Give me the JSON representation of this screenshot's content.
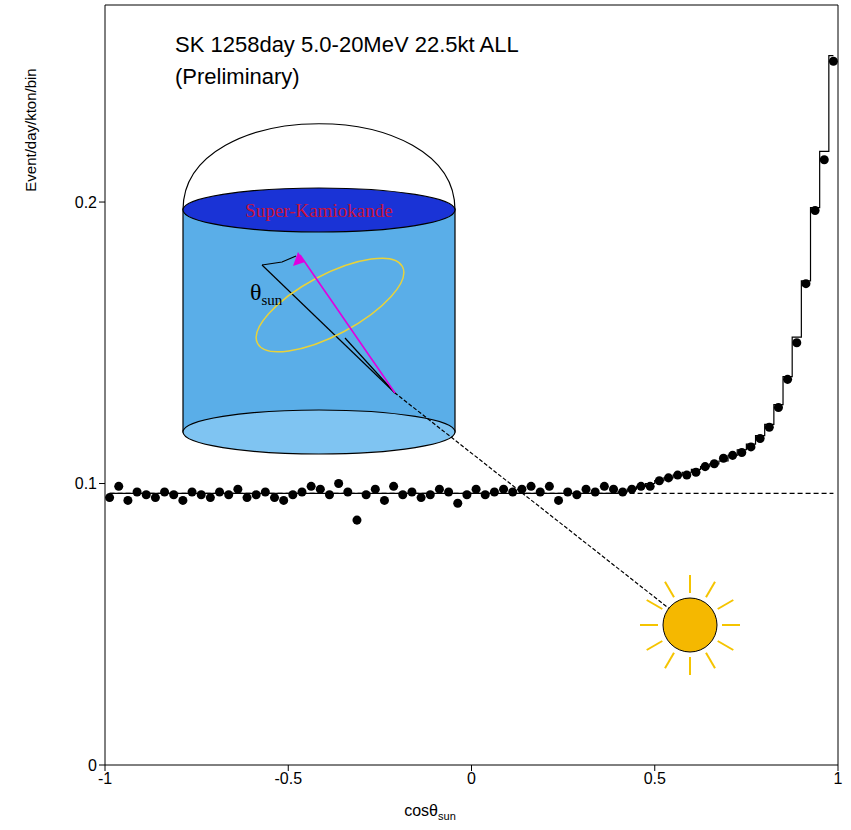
{
  "chart_data": {
    "type": "scatter",
    "title": "SK 1258day  5.0-20MeV  22.5kt  ALL",
    "subtitle": "(Preliminary)",
    "xlabel": {
      "text": "cosθ",
      "subscript": "sun"
    },
    "ylabel": "Event/day/kton/bin",
    "annotations": [
      {
        "text": "Super-Kamiokande"
      },
      {
        "text": "θ",
        "subscript": "sun"
      }
    ],
    "x": [
      -0.9875,
      -0.9625,
      -0.9375,
      -0.9125,
      -0.8875,
      -0.8625,
      -0.8375,
      -0.8125,
      -0.7875,
      -0.7625,
      -0.7375,
      -0.7125,
      -0.6875,
      -0.6625,
      -0.6375,
      -0.6125,
      -0.5875,
      -0.5625,
      -0.5375,
      -0.5125,
      -0.4875,
      -0.4625,
      -0.4375,
      -0.4125,
      -0.3875,
      -0.3625,
      -0.3375,
      -0.3125,
      -0.2875,
      -0.2625,
      -0.2375,
      -0.2125,
      -0.1875,
      -0.1625,
      -0.1375,
      -0.1125,
      -0.0875,
      -0.0625,
      -0.0375,
      -0.0125,
      0.0125,
      0.0375,
      0.0625,
      0.0875,
      0.1125,
      0.1375,
      0.1625,
      0.1875,
      0.2125,
      0.2375,
      0.2625,
      0.2875,
      0.3125,
      0.3375,
      0.3625,
      0.3875,
      0.4125,
      0.4375,
      0.4625,
      0.4875,
      0.5125,
      0.5375,
      0.5625,
      0.5875,
      0.6125,
      0.6375,
      0.6625,
      0.6875,
      0.7125,
      0.7375,
      0.7625,
      0.7875,
      0.8125,
      0.8375,
      0.8625,
      0.8875,
      0.9125,
      0.9375,
      0.9625,
      0.9875
    ],
    "series": [
      {
        "type": "scatter",
        "marker": "circle",
        "color": "#000000",
        "values": [
          0.095,
          0.099,
          0.094,
          0.097,
          0.096,
          0.095,
          0.097,
          0.096,
          0.094,
          0.097,
          0.096,
          0.095,
          0.097,
          0.096,
          0.098,
          0.095,
          0.096,
          0.097,
          0.095,
          0.094,
          0.096,
          0.097,
          0.099,
          0.098,
          0.096,
          0.1,
          0.097,
          0.087,
          0.096,
          0.098,
          0.094,
          0.099,
          0.096,
          0.097,
          0.095,
          0.096,
          0.098,
          0.097,
          0.093,
          0.096,
          0.098,
          0.096,
          0.097,
          0.098,
          0.097,
          0.098,
          0.099,
          0.097,
          0.099,
          0.094,
          0.097,
          0.096,
          0.098,
          0.097,
          0.099,
          0.098,
          0.097,
          0.098,
          0.099,
          0.099,
          0.101,
          0.102,
          0.103,
          0.103,
          0.104,
          0.106,
          0.107,
          0.109,
          0.11,
          0.111,
          0.113,
          0.116,
          0.12,
          0.127,
          0.137,
          0.15,
          0.171,
          0.197,
          0.215,
          0.25
        ]
      },
      {
        "type": "line",
        "line_style": "step",
        "color": "#000000",
        "values": [
          0.0965,
          0.0965,
          0.0965,
          0.0965,
          0.0965,
          0.0965,
          0.0965,
          0.0965,
          0.0965,
          0.0965,
          0.0965,
          0.0965,
          0.0965,
          0.0965,
          0.0965,
          0.0965,
          0.0965,
          0.0965,
          0.0965,
          0.0965,
          0.0965,
          0.0965,
          0.0965,
          0.0965,
          0.0965,
          0.0965,
          0.0965,
          0.0965,
          0.0965,
          0.0965,
          0.0965,
          0.0965,
          0.0965,
          0.0965,
          0.0965,
          0.0965,
          0.0965,
          0.0965,
          0.0965,
          0.0965,
          0.0965,
          0.0965,
          0.0965,
          0.0965,
          0.0965,
          0.0965,
          0.0965,
          0.0965,
          0.0965,
          0.0965,
          0.0965,
          0.0965,
          0.0965,
          0.0965,
          0.0965,
          0.0965,
          0.097,
          0.098,
          0.099,
          0.1,
          0.101,
          0.102,
          0.103,
          0.104,
          0.105,
          0.106,
          0.107,
          0.108,
          0.11,
          0.112,
          0.114,
          0.117,
          0.121,
          0.128,
          0.138,
          0.152,
          0.172,
          0.198,
          0.218,
          0.252
        ]
      },
      {
        "type": "line",
        "line_style": "dashed",
        "color": "#000000",
        "values": [
          0.0965,
          0.0965,
          0.0965,
          0.0965,
          0.0965,
          0.0965,
          0.0965,
          0.0965,
          0.0965,
          0.0965,
          0.0965,
          0.0965,
          0.0965,
          0.0965,
          0.0965,
          0.0965,
          0.0965,
          0.0965,
          0.0965,
          0.0965,
          0.0965,
          0.0965,
          0.0965,
          0.0965,
          0.0965,
          0.0965,
          0.0965,
          0.0965,
          0.0965,
          0.0965,
          0.0965,
          0.0965,
          0.0965,
          0.0965,
          0.0965,
          0.0965,
          0.0965,
          0.0965,
          0.0965,
          0.0965,
          0.0965,
          0.0965,
          0.0965,
          0.0965,
          0.0965,
          0.0965,
          0.0965,
          0.0965,
          0.0965,
          0.0965,
          0.0965,
          0.0965,
          0.0965,
          0.0965,
          0.0965,
          0.0965,
          0.0965,
          0.0965,
          0.0965,
          0.0965,
          0.0965,
          0.0965,
          0.0965,
          0.0965,
          0.0965,
          0.0965,
          0.0965,
          0.0965,
          0.0965,
          0.0965,
          0.0965,
          0.0965,
          0.0965,
          0.0965,
          0.0965,
          0.0965,
          0.0965,
          0.0965,
          0.0965,
          0.0965
        ]
      }
    ],
    "xlim": [
      -1,
      1
    ],
    "xticks": [
      -1,
      -0.5,
      0,
      0.5,
      1
    ],
    "ylim": [
      0,
      0.27
    ],
    "yticks": [
      0,
      0.1,
      0.2
    ],
    "grid": false
  }
}
